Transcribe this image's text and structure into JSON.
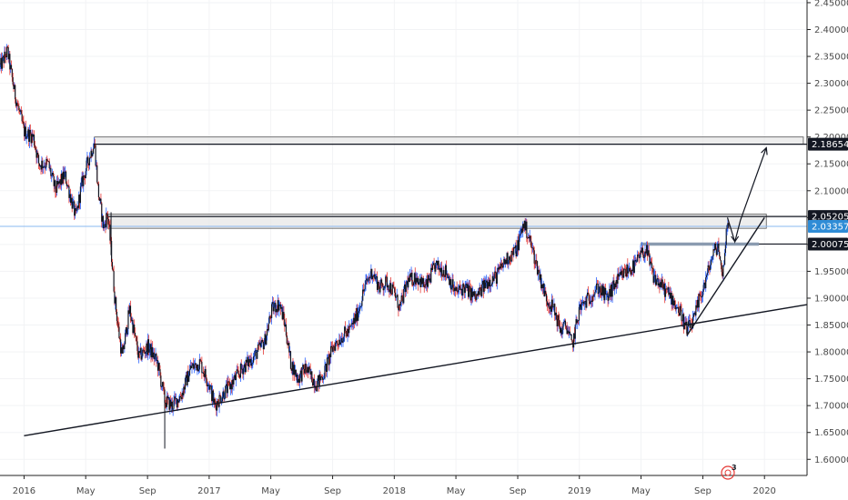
{
  "chart_data": {
    "type": "candlestick",
    "y_ticks": [
      "2.45000",
      "2.40000",
      "2.35000",
      "2.30000",
      "2.25000",
      "2.20000",
      "2.15000",
      "2.10000",
      "2.05000",
      "2.00000",
      "1.95000",
      "1.90000",
      "1.85000",
      "1.80000",
      "1.75000",
      "1.70000",
      "1.65000",
      "1.60000"
    ],
    "ylim": [
      1.57,
      2.455
    ],
    "x_ticks": [
      {
        "label": "2016",
        "t": 2016.0
      },
      {
        "label": "May",
        "t": 2016.333
      },
      {
        "label": "Sep",
        "t": 2016.667
      },
      {
        "label": "2017",
        "t": 2017.0
      },
      {
        "label": "May",
        "t": 2017.333
      },
      {
        "label": "Sep",
        "t": 2017.667
      },
      {
        "label": "2018",
        "t": 2018.0
      },
      {
        "label": "May",
        "t": 2018.333
      },
      {
        "label": "Sep",
        "t": 2018.667
      },
      {
        "label": "2019",
        "t": 2019.0
      },
      {
        "label": "May",
        "t": 2019.333
      },
      {
        "label": "Sep",
        "t": 2019.667
      },
      {
        "label": "2020",
        "t": 2020.0
      }
    ],
    "xlim": [
      2015.87,
      2020.23
    ],
    "price_path": [
      [
        2015.87,
        2.33
      ],
      [
        2015.91,
        2.36
      ],
      [
        2015.95,
        2.28
      ],
      [
        2016.0,
        2.21
      ],
      [
        2016.05,
        2.2
      ],
      [
        2016.08,
        2.15
      ],
      [
        2016.13,
        2.15
      ],
      [
        2016.17,
        2.1
      ],
      [
        2016.22,
        2.13
      ],
      [
        2016.28,
        2.05
      ],
      [
        2016.31,
        2.11
      ],
      [
        2016.35,
        2.16
      ],
      [
        2016.38,
        2.19
      ],
      [
        2016.4,
        2.1
      ],
      [
        2016.43,
        2.03
      ],
      [
        2016.45,
        2.06
      ],
      [
        2016.47,
        1.99
      ],
      [
        2016.49,
        1.9
      ],
      [
        2016.51,
        1.84
      ],
      [
        2016.53,
        1.79
      ],
      [
        2016.57,
        1.88
      ],
      [
        2016.62,
        1.79
      ],
      [
        2016.67,
        1.81
      ],
      [
        2016.72,
        1.78
      ],
      [
        2016.76,
        1.71
      ],
      [
        2016.8,
        1.7
      ],
      [
        2016.85,
        1.72
      ],
      [
        2016.9,
        1.77
      ],
      [
        2016.95,
        1.78
      ],
      [
        2017.0,
        1.74
      ],
      [
        2017.03,
        1.7
      ],
      [
        2017.07,
        1.72
      ],
      [
        2017.12,
        1.74
      ],
      [
        2017.18,
        1.77
      ],
      [
        2017.24,
        1.79
      ],
      [
        2017.3,
        1.82
      ],
      [
        2017.34,
        1.88
      ],
      [
        2017.38,
        1.89
      ],
      [
        2017.41,
        1.85
      ],
      [
        2017.44,
        1.78
      ],
      [
        2017.48,
        1.75
      ],
      [
        2017.52,
        1.77
      ],
      [
        2017.58,
        1.74
      ],
      [
        2017.62,
        1.76
      ],
      [
        2017.67,
        1.81
      ],
      [
        2017.72,
        1.83
      ],
      [
        2017.76,
        1.84
      ],
      [
        2017.8,
        1.87
      ],
      [
        2017.84,
        1.92
      ],
      [
        2017.88,
        1.95
      ],
      [
        2017.92,
        1.92
      ],
      [
        2017.96,
        1.93
      ],
      [
        2018.0,
        1.91
      ],
      [
        2018.03,
        1.88
      ],
      [
        2018.07,
        1.93
      ],
      [
        2018.12,
        1.94
      ],
      [
        2018.17,
        1.92
      ],
      [
        2018.22,
        1.96
      ],
      [
        2018.28,
        1.95
      ],
      [
        2018.33,
        1.91
      ],
      [
        2018.38,
        1.92
      ],
      [
        2018.44,
        1.9
      ],
      [
        2018.5,
        1.93
      ],
      [
        2018.55,
        1.94
      ],
      [
        2018.6,
        1.97
      ],
      [
        2018.66,
        1.99
      ],
      [
        2018.7,
        2.04
      ],
      [
        2018.73,
        2.01
      ],
      [
        2018.77,
        1.96
      ],
      [
        2018.82,
        1.9
      ],
      [
        2018.86,
        1.88
      ],
      [
        2018.9,
        1.84
      ],
      [
        2018.93,
        1.85
      ],
      [
        2018.96,
        1.81
      ],
      [
        2019.0,
        1.88
      ],
      [
        2019.05,
        1.9
      ],
      [
        2019.1,
        1.92
      ],
      [
        2019.15,
        1.9
      ],
      [
        2019.2,
        1.93
      ],
      [
        2019.25,
        1.95
      ],
      [
        2019.3,
        1.96
      ],
      [
        2019.33,
        1.98
      ],
      [
        2019.36,
        1.99
      ],
      [
        2019.4,
        1.94
      ],
      [
        2019.45,
        1.92
      ],
      [
        2019.5,
        1.9
      ],
      [
        2019.55,
        1.87
      ],
      [
        2019.58,
        1.84
      ],
      [
        2019.62,
        1.86
      ],
      [
        2019.65,
        1.9
      ],
      [
        2019.68,
        1.93
      ],
      [
        2019.72,
        1.98
      ],
      [
        2019.75,
        2.0
      ],
      [
        2019.77,
        1.94
      ],
      [
        2019.79,
        2.0
      ],
      [
        2019.8,
        2.05
      ],
      [
        2019.81,
        2.03357
      ]
    ],
    "zones": [
      {
        "name": "upper-resistance-zone",
        "t0": 2016.38,
        "t1": 2020.21,
        "y_low": 2.18654,
        "y_high": 2.2
      },
      {
        "name": "mid-resistance-zone",
        "t0": 2016.45,
        "t1": 2020.01,
        "y_low": 2.03,
        "y_high": 2.0565
      }
    ],
    "levels": [
      {
        "name": "level-2-18654",
        "t0": 2016.38,
        "y": 2.18654
      },
      {
        "name": "level-2-05205",
        "t0": 2016.45,
        "y": 2.05205
      },
      {
        "name": "level-2-00075",
        "t0": 2019.33,
        "y": 2.00075
      }
    ],
    "support_zone_line": {
      "t0": 2019.33,
      "t1": 2019.97,
      "y": 2.00075
    },
    "current_price_line": {
      "y": 2.03357
    },
    "trendlines": [
      {
        "name": "long-term-trendline",
        "t0": 2016.0,
        "y0": 1.644,
        "t1": 2020.23,
        "y1": 1.888
      },
      {
        "name": "short-term-trendline",
        "t0": 2019.58,
        "y0": 1.83,
        "t1": 2020.0,
        "y1": 2.05
      }
    ],
    "projection_path": [
      [
        2019.8,
        2.05
      ],
      [
        2019.84,
        2.005
      ],
      [
        2019.87,
        2.045
      ],
      [
        2020.01,
        2.18
      ]
    ],
    "spike_lines": [
      {
        "t": 2016.76,
        "y0": 1.62,
        "y1": 1.71
      },
      {
        "t": 2016.47,
        "y0": 1.98,
        "y1": 2.06
      }
    ],
    "price_tags": [
      {
        "label": "2.18654",
        "y": 2.18654,
        "style": "dark"
      },
      {
        "label": "2.05205",
        "y": 2.05205,
        "style": "dark"
      },
      {
        "label": "2.03357",
        "y": 2.03357,
        "style": "blue"
      },
      {
        "label": "2.00075",
        "y": 2.00075,
        "style": "dark"
      }
    ]
  },
  "colors": {
    "up": "#2962ff",
    "down": "#e53935",
    "candle": "#131722",
    "grid": "#f2f3f5",
    "axis": "#222222",
    "zone_fill": "#e6e6e6",
    "zone_stroke": "#555555",
    "current_line": "#8ab8f0",
    "tag_dark": "#131722",
    "tag_blue": "#2f8cd6",
    "support": "#8a9bb0"
  },
  "watermark_badge": "3"
}
